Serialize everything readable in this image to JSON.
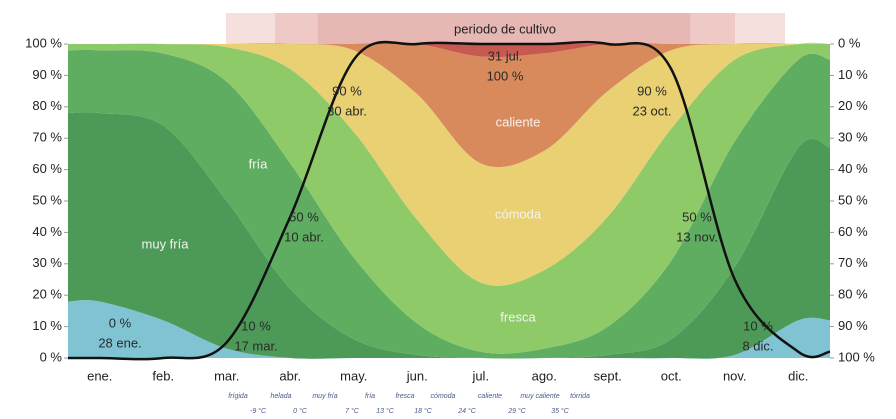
{
  "chart_data": {
    "type": "area",
    "title": "periodo de cultivo",
    "categories": [
      "ene.",
      "feb.",
      "mar.",
      "abr.",
      "may.",
      "jun.",
      "jul.",
      "ago.",
      "sept.",
      "oct.",
      "nov.",
      "dic."
    ],
    "series": [
      {
        "color": "#80c4d4",
        "values": [
          18,
          12,
          3,
          0,
          0,
          0,
          0,
          0,
          0,
          0,
          1,
          12
        ]
      },
      {
        "name": "muy fría",
        "color": "#4d9a58",
        "values": [
          60,
          62,
          47,
          22,
          6,
          1,
          0,
          0,
          1,
          6,
          28,
          55
        ]
      },
      {
        "name": "fría",
        "color": "#5fad60",
        "values": [
          20,
          23,
          38,
          40,
          26,
          10,
          2,
          3,
          9,
          25,
          40,
          28
        ]
      },
      {
        "name": "fresca",
        "color": "#8fca69",
        "values": [
          2,
          3,
          11,
          30,
          40,
          33,
          22,
          25,
          35,
          42,
          26,
          5
        ]
      },
      {
        "name": "cómoda",
        "color": "#e8d073",
        "values": [
          0,
          0,
          1,
          8,
          26,
          40,
          38,
          38,
          40,
          25,
          5,
          0
        ]
      },
      {
        "name": "caliente",
        "color": "#d98a5d",
        "values": [
          0,
          0,
          0,
          0,
          2,
          16,
          34,
          31,
          15,
          2,
          0,
          0
        ]
      },
      {
        "color": "#c65a50",
        "values": [
          0,
          0,
          0,
          0,
          0,
          0,
          4,
          3,
          0,
          0,
          0,
          0
        ]
      }
    ],
    "season": {
      "color": "#111111",
      "values": [
        0,
        0,
        5,
        45,
        95,
        100,
        100,
        100,
        100,
        92,
        25,
        2
      ]
    },
    "ylim": [
      0,
      100
    ],
    "yticks": [
      {
        "value": 0,
        "label": "0 %"
      },
      {
        "value": 10,
        "label": "10 %"
      },
      {
        "value": 20,
        "label": "20 %"
      },
      {
        "value": 30,
        "label": "30 %"
      },
      {
        "value": 40,
        "label": "40 %"
      },
      {
        "value": 50,
        "label": "50 %"
      },
      {
        "value": 60,
        "label": "60 %"
      },
      {
        "value": 70,
        "label": "70 %"
      },
      {
        "value": 80,
        "label": "80 %"
      },
      {
        "value": 90,
        "label": "90 %"
      },
      {
        "value": 100,
        "label": "100 %"
      }
    ],
    "y2lim": [
      100,
      0
    ],
    "y2ticks": [
      {
        "value": 0,
        "label": "0 %"
      },
      {
        "value": 10,
        "label": "10 %"
      },
      {
        "value": 20,
        "label": "20 %"
      },
      {
        "value": 30,
        "label": "30 %"
      },
      {
        "value": 40,
        "label": "40 %"
      },
      {
        "value": 50,
        "label": "50 %"
      },
      {
        "value": 60,
        "label": "60 %"
      },
      {
        "value": 70,
        "label": "70 %"
      },
      {
        "value": 80,
        "label": "80 %"
      },
      {
        "value": 90,
        "label": "90 %"
      },
      {
        "value": 100,
        "label": "100 %"
      }
    ],
    "annotations": [
      {
        "text": [
          "31 jul.",
          "100 %"
        ]
      },
      {
        "text": [
          "90 %",
          "30 abr."
        ]
      },
      {
        "text": [
          "90 %",
          "23 oct."
        ]
      },
      {
        "text": [
          "50 %",
          "10 abr."
        ]
      },
      {
        "text": [
          "50 %",
          "13 nov."
        ]
      },
      {
        "text": [
          "10 %",
          "17 mar."
        ]
      },
      {
        "text": [
          "10 %",
          "8 dic."
        ]
      },
      {
        "text": [
          "0 %",
          "28 ene."
        ]
      }
    ],
    "scale": {
      "names": [
        "frígida",
        "helada",
        "muy fría",
        "fría",
        "fresca",
        "cómoda",
        "caliente",
        "muy caliente",
        "tórrida"
      ],
      "temps": [
        "-9 °C",
        "0 °C",
        "7 °C",
        "13 °C",
        "18 °C",
        "24 °C",
        "29 °C",
        "35 °C"
      ]
    }
  }
}
